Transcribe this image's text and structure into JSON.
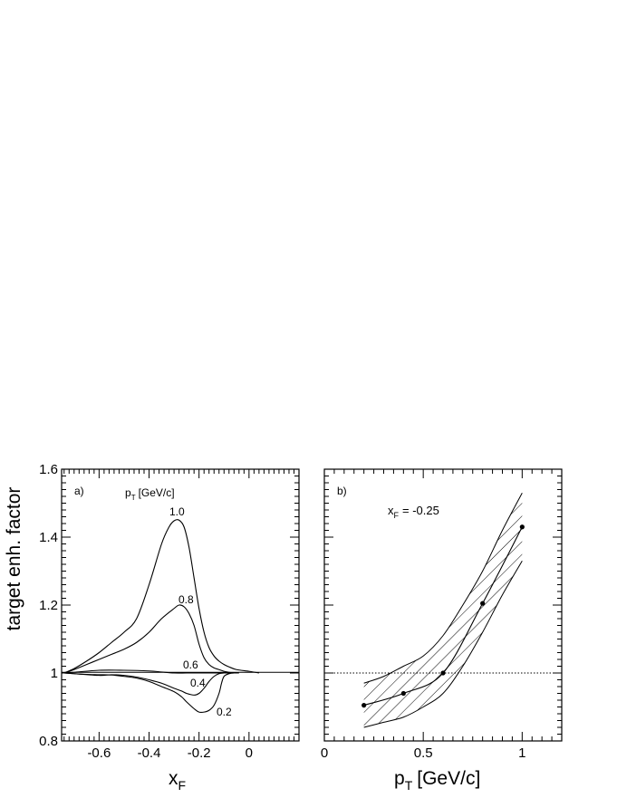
{
  "chart_data": [
    {
      "type": "line",
      "panel_label": "a)",
      "xlabel": "x",
      "xlabel_sub": "F",
      "ylabel": "target enh. factor",
      "xlim": [
        -0.75,
        0.2
      ],
      "ylim": [
        0.8,
        1.6
      ],
      "x_ticks": [
        -0.6,
        -0.4,
        -0.2,
        0
      ],
      "x_tick_labels": [
        "-0.6",
        "-0.4",
        "-0.2",
        "0"
      ],
      "y_ticks": [
        0.8,
        1.0,
        1.2,
        1.4,
        1.6
      ],
      "y_tick_labels": [
        "0.8",
        "1",
        "1.2",
        "1.4",
        "1.6"
      ],
      "legend_title_p": "p",
      "legend_title_sub": "T",
      "legend_title_unit": "[GeV/c]",
      "series": [
        {
          "name": "1.0",
          "x": [
            -0.74,
            -0.7,
            -0.65,
            -0.6,
            -0.55,
            -0.5,
            -0.45,
            -0.4,
            -0.35,
            -0.32,
            -0.3,
            -0.28,
            -0.26,
            -0.24,
            -0.22,
            -0.2,
            -0.18,
            -0.16,
            -0.14,
            -0.12,
            -0.1,
            -0.08,
            -0.05,
            0.0,
            0.04
          ],
          "y": [
            1.0,
            1.013,
            1.035,
            1.06,
            1.09,
            1.12,
            1.16,
            1.26,
            1.38,
            1.43,
            1.448,
            1.45,
            1.43,
            1.37,
            1.28,
            1.19,
            1.12,
            1.075,
            1.05,
            1.035,
            1.025,
            1.018,
            1.01,
            1.005,
            1.0
          ]
        },
        {
          "name": "0.8",
          "x": [
            -0.74,
            -0.7,
            -0.65,
            -0.6,
            -0.55,
            -0.5,
            -0.45,
            -0.4,
            -0.35,
            -0.3,
            -0.28,
            -0.26,
            -0.24,
            -0.22,
            -0.2,
            -0.18,
            -0.16,
            -0.14,
            -0.12,
            -0.1,
            -0.08,
            -0.06
          ],
          "y": [
            1.0,
            1.01,
            1.025,
            1.04,
            1.055,
            1.07,
            1.09,
            1.12,
            1.16,
            1.19,
            1.2,
            1.195,
            1.175,
            1.14,
            1.085,
            1.045,
            1.025,
            1.015,
            1.01,
            1.005,
            1.002,
            1.0
          ]
        },
        {
          "name": "0.6",
          "x": [
            -0.74,
            -0.7,
            -0.6,
            -0.5,
            -0.4,
            -0.35,
            -0.3,
            -0.25,
            -0.2,
            -0.15,
            -0.1,
            -0.08,
            -0.06
          ],
          "y": [
            1.0,
            1.002,
            1.008,
            1.008,
            1.006,
            1.003,
            1.0,
            1.0,
            1.0,
            1.0,
            1.0,
            1.0,
            1.0
          ]
        },
        {
          "name": "0.4",
          "x": [
            -0.74,
            -0.7,
            -0.6,
            -0.55,
            -0.5,
            -0.45,
            -0.4,
            -0.35,
            -0.3,
            -0.27,
            -0.25,
            -0.22,
            -0.2,
            -0.18,
            -0.16,
            -0.14,
            -0.12,
            -0.1,
            -0.08,
            -0.06
          ],
          "y": [
            1.0,
            0.998,
            0.993,
            0.995,
            0.993,
            0.988,
            0.98,
            0.97,
            0.955,
            0.947,
            0.94,
            0.935,
            0.94,
            0.955,
            0.975,
            0.99,
            0.998,
            1.0,
            1.0,
            1.0
          ]
        },
        {
          "name": "0.2",
          "x": [
            -0.74,
            -0.7,
            -0.65,
            -0.6,
            -0.55,
            -0.5,
            -0.45,
            -0.4,
            -0.35,
            -0.3,
            -0.27,
            -0.25,
            -0.22,
            -0.2,
            -0.18,
            -0.16,
            -0.14,
            -0.12,
            -0.11,
            -0.1,
            -0.08,
            -0.06,
            -0.04
          ],
          "y": [
            1.0,
            0.998,
            0.996,
            0.995,
            0.994,
            0.99,
            0.985,
            0.975,
            0.96,
            0.945,
            0.93,
            0.915,
            0.895,
            0.885,
            0.885,
            0.89,
            0.905,
            0.94,
            0.97,
            0.99,
            0.998,
            1.0,
            1.0
          ]
        }
      ]
    },
    {
      "type": "line",
      "panel_label": "b)",
      "annotation_x": "x",
      "annotation_sub": "F",
      "annotation_value": "= -0.25",
      "xlabel": "p",
      "xlabel_sub": "T",
      "xlabel_unit": "[GeV/c]",
      "xlim": [
        0,
        1.2
      ],
      "ylim": [
        0.8,
        1.6
      ],
      "x_ticks": [
        0,
        0.5,
        1
      ],
      "x_tick_labels": [
        "0",
        "0.5",
        "1"
      ],
      "y_ticks": [
        0.8,
        1.0,
        1.2,
        1.4,
        1.6
      ],
      "reference_line_y": 1.0,
      "points": {
        "x": [
          0.2,
          0.4,
          0.6,
          0.8,
          1.0
        ],
        "y": [
          0.905,
          0.94,
          1.0,
          1.205,
          1.43
        ]
      },
      "band_upper": {
        "x": [
          0.2,
          0.3,
          0.4,
          0.5,
          0.6,
          0.7,
          0.8,
          0.9,
          1.0
        ],
        "y": [
          0.97,
          0.99,
          1.02,
          1.05,
          1.11,
          1.2,
          1.3,
          1.42,
          1.53
        ]
      },
      "band_lower": {
        "x": [
          0.2,
          0.3,
          0.4,
          0.5,
          0.6,
          0.7,
          0.8,
          0.9,
          1.0
        ],
        "y": [
          0.84,
          0.855,
          0.87,
          0.9,
          0.94,
          1.02,
          1.12,
          1.23,
          1.33
        ]
      }
    }
  ]
}
